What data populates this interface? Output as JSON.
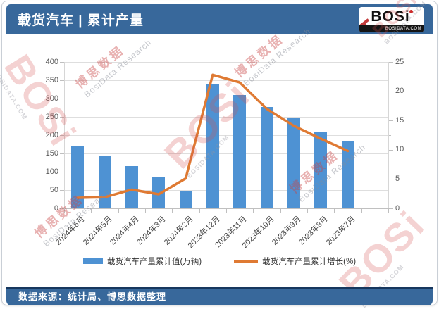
{
  "header": {
    "title": "载货汽车 | 累计产量",
    "logo": {
      "text": "BOSi",
      "site": "BOSIDATA.COM"
    }
  },
  "footer": {
    "source": "数据来源：统计局、博思数据整理"
  },
  "watermark": {
    "logo_text": "BOSi",
    "logo_sub": "BOSIDATA.COM",
    "cn": "博思数据",
    "en": "BosiData Research"
  },
  "colors": {
    "header_bar": "#38689B",
    "footer_border": "#17375E",
    "bar": "#4E92D3",
    "line": "#DF7A33",
    "grid": "#DEDEDE",
    "axis_text": "#595959"
  },
  "chart_data": {
    "type": "bar",
    "subtype": "bar+line combo, dual axis",
    "title": "载货汽车 | 累计产量",
    "categories": [
      "2024年6月",
      "2024年5月",
      "2024年4月",
      "2024年3月",
      "2024年2月",
      "2023年12月",
      "2023年11月",
      "2023年10月",
      "2023年9月",
      "2023年8月",
      "2023年7月"
    ],
    "series": [
      {
        "name": "载货汽车产量累计值(万辆)",
        "type": "bar",
        "axis": "left",
        "color": "#4E92D3",
        "values": [
          170,
          142,
          115,
          84,
          48,
          340,
          309,
          277,
          247,
          210,
          185
        ]
      },
      {
        "name": "载货汽车产量累计增长(%)",
        "type": "line",
        "axis": "right",
        "color": "#DF7A33",
        "values": [
          1.8,
          1.9,
          3.2,
          2.4,
          5.1,
          22.8,
          21.5,
          17.0,
          14.1,
          11.9,
          9.8
        ]
      }
    ],
    "left_axis": {
      "min": 0,
      "max": 400,
      "step": 50,
      "ticks": [
        0,
        50,
        100,
        150,
        200,
        250,
        300,
        350,
        400
      ]
    },
    "right_axis": {
      "min": 0,
      "max": 25,
      "step": 5,
      "ticks": [
        0,
        5,
        10,
        15,
        20,
        25
      ]
    },
    "grid": true,
    "legend_position": "bottom"
  }
}
